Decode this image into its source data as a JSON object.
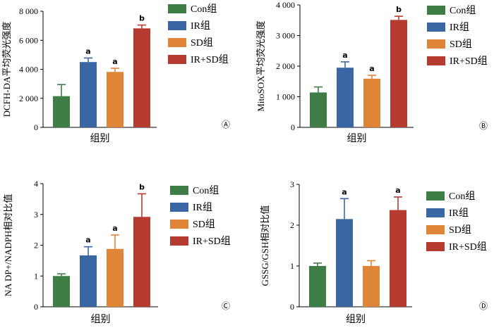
{
  "chart_data": [
    {
      "type": "bar",
      "panel": "Ⓐ",
      "ylabel": "DCFH-DA平均荧光强度",
      "xlabel": "组别",
      "ylim": [
        0,
        8000
      ],
      "yticks": [
        "0",
        "2 000",
        "4 000",
        "6 000",
        "8 000"
      ],
      "ytick_values": [
        0,
        2000,
        4000,
        6000,
        8000
      ],
      "categories": [
        "Con组",
        "IR组",
        "SD组",
        "IR+SD组"
      ],
      "values": [
        2150,
        4500,
        3820,
        6820
      ],
      "errors": [
        800,
        280,
        250,
        230
      ],
      "annotations": [
        "",
        "a",
        "a",
        "b"
      ]
    },
    {
      "type": "bar",
      "panel": "Ⓑ",
      "ylabel": "MitoSOX平均荧光强度",
      "xlabel": "组别",
      "ylim": [
        0,
        4000
      ],
      "yticks": [
        "0",
        "1 000",
        "2 000",
        "3 000",
        "4 000"
      ],
      "ytick_values": [
        0,
        1000,
        2000,
        3000,
        4000
      ],
      "categories": [
        "Con组",
        "IR组",
        "SD组",
        "IR+SD组"
      ],
      "values": [
        1140,
        1950,
        1590,
        3510
      ],
      "errors": [
        180,
        190,
        110,
        120
      ],
      "annotations": [
        "",
        "a",
        "a",
        "b"
      ]
    },
    {
      "type": "bar",
      "panel": "Ⓒ",
      "ylabel": "NA DP+/NADPH相对比值",
      "xlabel": "组别",
      "ylim": [
        0,
        4
      ],
      "yticks": [
        "0",
        "1",
        "2",
        "3",
        "4"
      ],
      "ytick_values": [
        0,
        1,
        2,
        3,
        4
      ],
      "categories": [
        "Con组",
        "IR组",
        "SD组",
        "IR+SD组"
      ],
      "values": [
        1.0,
        1.67,
        1.88,
        2.92
      ],
      "errors": [
        0.07,
        0.28,
        0.45,
        0.75
      ],
      "annotations": [
        "",
        "a",
        "a",
        "b"
      ]
    },
    {
      "type": "bar",
      "panel": "Ⓓ",
      "ylabel": "GSSG/GSH相对比值",
      "xlabel": "组别",
      "ylim": [
        0,
        3
      ],
      "yticks": [
        "0",
        "1",
        "2",
        "3"
      ],
      "ytick_values": [
        0,
        1,
        2,
        3
      ],
      "categories": [
        "Con组",
        "IR组",
        "SD组",
        "IR+SD组"
      ],
      "values": [
        1.0,
        2.15,
        1.0,
        2.37
      ],
      "errors": [
        0.07,
        0.5,
        0.13,
        0.32
      ],
      "annotations": [
        "",
        "a",
        "",
        "a"
      ]
    }
  ],
  "colors": {
    "Con组": "#3f7d46",
    "IR组": "#3a67a3",
    "SD组": "#df8537",
    "IR+SD组": "#b53a30"
  }
}
